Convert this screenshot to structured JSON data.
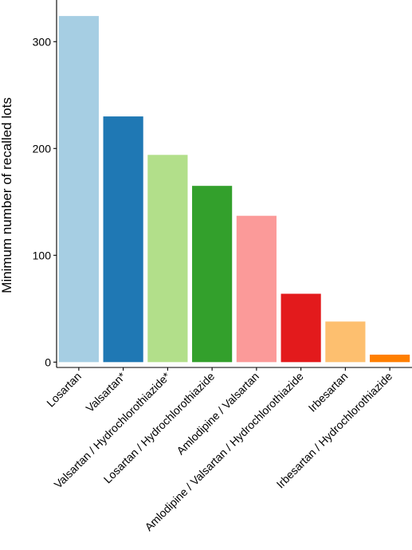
{
  "chart_data": {
    "type": "bar",
    "title": "",
    "xlabel": "",
    "ylabel": "Minimum number of recalled lots",
    "categories": [
      "Losartan",
      "Valsartan*",
      "Valsartan / Hydrochlorothiazide*",
      "Losartan / Hydrochlorothiazide",
      "Amlodipine / Valsartan",
      "Amlodipine / Valsartan / Hydrochlorothiazide",
      "Irbesartan",
      "Irbesartan / Hydrochlorothiazide"
    ],
    "values": [
      324,
      230,
      194,
      165,
      137,
      64,
      38,
      7
    ],
    "colors": [
      "#a6cee3",
      "#1f78b4",
      "#b2df8a",
      "#33a02c",
      "#fb9a99",
      "#e31a1c",
      "#fdbf6f",
      "#ff7f00"
    ],
    "ylim": [
      -5,
      339
    ],
    "yticks": [
      0,
      100,
      200,
      300
    ],
    "grid": false,
    "legend": "none"
  }
}
